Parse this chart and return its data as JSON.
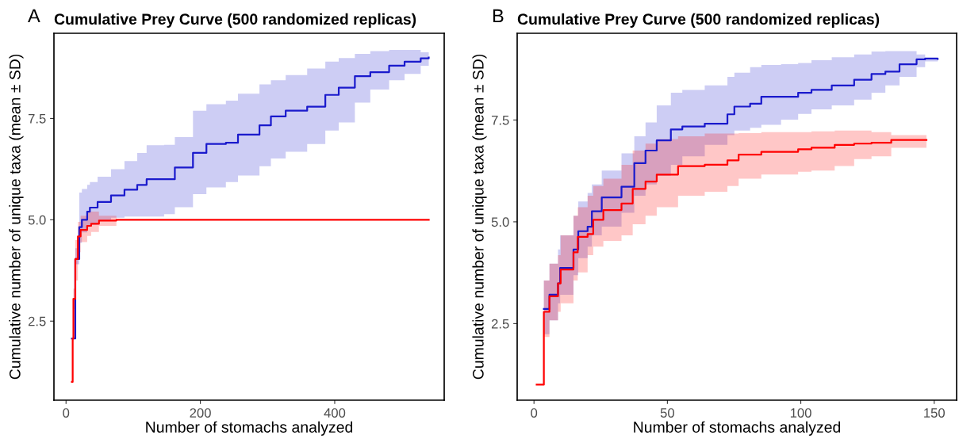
{
  "chart_data": [
    {
      "type": "step",
      "title": "Cumulative Prey Curve (500 randomized replicas)",
      "xlabel": "Number of stomachs analyzed",
      "ylabel": "Cumulative number of unique taxa (mean ± SD)",
      "annotations": [
        "A"
      ],
      "xlim": [
        -18,
        563
      ],
      "xticks": [
        0,
        200,
        400
      ],
      "ylim": [
        0.55,
        9.6
      ],
      "yticks": [
        {
          "value": 2.5,
          "label": "2.5"
        },
        {
          "value": 5,
          "label": "5.0"
        },
        {
          "value": 7.5,
          "label": "7.5"
        }
      ],
      "grid": false,
      "legend": false,
      "series": [
        {
          "color": "#1a1acc",
          "x": [
            8.7,
            13.8,
            19.7,
            23.6,
            31.5,
            35.5,
            47,
            67,
            87,
            106,
            120,
            146,
            162,
            189,
            209,
            238,
            256,
            288,
            305,
            327,
            359,
            386,
            406,
            430,
            453,
            481,
            504,
            528,
            540
          ],
          "values": [
            2.07,
            4.03,
            4.82,
            5.0,
            5.2,
            5.3,
            5.44,
            5.6,
            5.74,
            5.86,
            6.0,
            6.0,
            6.29,
            6.65,
            6.87,
            6.9,
            7.1,
            7.33,
            7.55,
            7.69,
            7.79,
            8.08,
            8.26,
            8.54,
            8.64,
            8.8,
            8.9,
            8.98,
            9.0
          ],
          "upper": [
            2.07,
            4.3,
            5.67,
            5.76,
            5.86,
            5.93,
            6.06,
            6.25,
            6.45,
            6.65,
            6.84,
            6.85,
            7.04,
            7.69,
            7.85,
            7.94,
            8.11,
            8.34,
            8.44,
            8.57,
            8.73,
            8.9,
            8.99,
            9.09,
            9.16,
            9.19,
            9.19,
            9.13,
            9.0
          ],
          "lower": [
            2.07,
            3.9,
            4.43,
            4.69,
            4.82,
            4.88,
            4.98,
            5.05,
            5.08,
            5.08,
            5.08,
            5.14,
            5.31,
            5.63,
            5.8,
            5.93,
            6.09,
            6.32,
            6.51,
            6.68,
            6.87,
            7.2,
            7.4,
            7.89,
            8.21,
            8.44,
            8.6,
            8.8,
            8.96
          ]
        },
        {
          "color": "#ff0000",
          "x": [
            8.7,
            9.9,
            11,
            13.8,
            17.7,
            21.7,
            31.5,
            37.4,
            49,
            75,
            540
          ],
          "values": [
            1.0,
            2.07,
            3.05,
            4.03,
            4.59,
            4.75,
            4.85,
            4.9,
            4.98,
            5.0,
            5.0
          ],
          "upper": [
            1.0,
            2.1,
            3.3,
            4.5,
            4.95,
            5.1,
            5.2,
            5.2,
            5.1,
            5.0,
            5.0
          ],
          "lower": [
            1.0,
            2.0,
            2.8,
            3.5,
            4.2,
            4.45,
            4.6,
            4.7,
            4.85,
            5.0,
            5.0
          ]
        }
      ]
    },
    {
      "type": "step",
      "title": "Cumulative Prey Curve (500 randomized replicas)",
      "xlabel": "Number of stomachs analyzed",
      "ylabel": "Cumulative number of unique taxa (mean ± SD)",
      "annotations": [
        "B"
      ],
      "xlim": [
        -6.3,
        158.4
      ],
      "xticks": [
        0,
        50,
        100,
        150
      ],
      "ylim": [
        0.62,
        9.63
      ],
      "yticks": [
        {
          "value": 2.5,
          "label": "2.5"
        },
        {
          "value": 5,
          "label": "5.0"
        },
        {
          "value": 7.5,
          "label": "7.5"
        }
      ],
      "grid": false,
      "legend": false,
      "series": [
        {
          "color": "#1a1acc",
          "x": [
            1,
            3.7,
            5.8,
            9,
            9.8,
            14.8,
            16.6,
            20.1,
            21.7,
            25.4,
            32.8,
            37.6,
            41.8,
            46,
            51.3,
            55.6,
            64,
            72.5,
            75.1,
            81,
            85.2,
            92.6,
            99,
            104,
            111.6,
            120,
            126.5,
            131.7,
            137,
            143.4,
            146.6,
            151.3
          ],
          "values": [
            null,
            2.86,
            3.21,
            3.49,
            3.87,
            4.32,
            4.77,
            4.88,
            5.26,
            5.6,
            5.86,
            6.44,
            6.75,
            7.0,
            7.27,
            7.34,
            7.41,
            7.64,
            7.83,
            7.9,
            8.07,
            8.07,
            8.17,
            8.24,
            8.35,
            8.49,
            8.63,
            8.69,
            8.87,
            8.99,
            9.01,
            9.0
          ],
          "upper": [
            1.0,
            3.56,
            3.97,
            4.32,
            4.67,
            5.15,
            5.5,
            5.71,
            5.92,
            6.26,
            6.68,
            7.1,
            7.44,
            7.86,
            8.17,
            8.24,
            8.35,
            8.56,
            8.66,
            8.8,
            8.85,
            8.87,
            8.9,
            8.97,
            9.04,
            9.11,
            9.18,
            9.19,
            9.19,
            9.11,
            9.01,
            9.0
          ],
          "lower": [
            1.0,
            2.24,
            2.58,
            3.0,
            3.21,
            3.69,
            4.11,
            4.39,
            4.67,
            4.88,
            5.22,
            5.64,
            5.92,
            6.13,
            6.4,
            6.61,
            6.89,
            7.13,
            7.24,
            7.31,
            7.38,
            7.51,
            7.65,
            7.76,
            7.86,
            8.0,
            8.17,
            8.35,
            8.56,
            8.8,
            8.94,
            9.0
          ]
        },
        {
          "color": "#ff0000",
          "x": [
            1,
            3.7,
            5.8,
            9,
            10,
            14.8,
            16.4,
            20.1,
            22.2,
            26,
            32.8,
            37,
            41.8,
            46,
            54,
            64,
            72.5,
            76.7,
            85.2,
            99,
            104,
            112.7,
            120,
            126.5,
            133.9,
            147.1
          ],
          "values": [
            1.0,
            2.79,
            3.17,
            3.49,
            3.83,
            4.25,
            4.63,
            4.7,
            5.05,
            5.29,
            5.45,
            5.81,
            5.99,
            6.16,
            6.37,
            6.4,
            6.51,
            6.65,
            6.72,
            6.78,
            6.82,
            6.89,
            6.92,
            6.94,
            7.01,
            7.01
          ],
          "upper": [
            1.0,
            3.56,
            3.97,
            4.18,
            4.67,
            5.15,
            5.36,
            5.64,
            5.88,
            6.06,
            6.4,
            6.75,
            6.92,
            7.03,
            7.1,
            7.17,
            7.17,
            7.18,
            7.2,
            7.2,
            7.22,
            7.24,
            7.24,
            7.2,
            7.13,
            7.01
          ],
          "lower": [
            1.0,
            2.17,
            2.58,
            2.79,
            3.0,
            3.56,
            3.76,
            4.18,
            4.39,
            4.53,
            4.67,
            4.94,
            5.15,
            5.36,
            5.64,
            5.74,
            5.88,
            6.06,
            6.16,
            6.23,
            6.26,
            6.37,
            6.54,
            6.61,
            6.82,
            7.01
          ]
        }
      ]
    }
  ]
}
